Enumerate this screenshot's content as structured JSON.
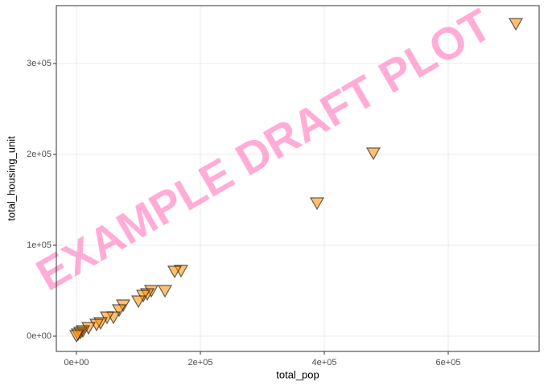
{
  "chart_data": {
    "type": "scatter",
    "x_label": "total_pop",
    "y_label": "total_housing_unit",
    "watermark": "EXAMPLE DRAFT PLOT",
    "color": "#ff8c00",
    "grid": true,
    "xlim": [
      -32468,
      746753
    ],
    "ylim": [
      -16814,
      363717
    ],
    "xticks": [
      {
        "value": 0,
        "label": "0e+00"
      },
      {
        "value": 200000,
        "label": "2e+05"
      },
      {
        "value": 400000,
        "label": "4e+05"
      },
      {
        "value": 600000,
        "label": "6e+05"
      }
    ],
    "yticks": [
      {
        "value": 0,
        "label": "0e+00"
      },
      {
        "value": 100000,
        "label": "1e+05"
      },
      {
        "value": 200000,
        "label": "2e+05"
      },
      {
        "value": 300000,
        "label": "3e+05"
      }
    ],
    "x": [
      709091,
      479221,
      388312,
      168831,
      158442,
      142857,
      120779,
      114286,
      107792,
      100000,
      75325,
      68831,
      59740,
      49351,
      38961,
      32468,
      19481,
      10390,
      6494,
      2597,
      0
    ],
    "y": [
      343363,
      200885,
      146018,
      71681,
      70796,
      49558,
      49558,
      46000,
      44248,
      38053,
      33628,
      28319,
      20354,
      20354,
      14159,
      12389,
      8850,
      5310,
      3540,
      1770,
      0
    ]
  }
}
